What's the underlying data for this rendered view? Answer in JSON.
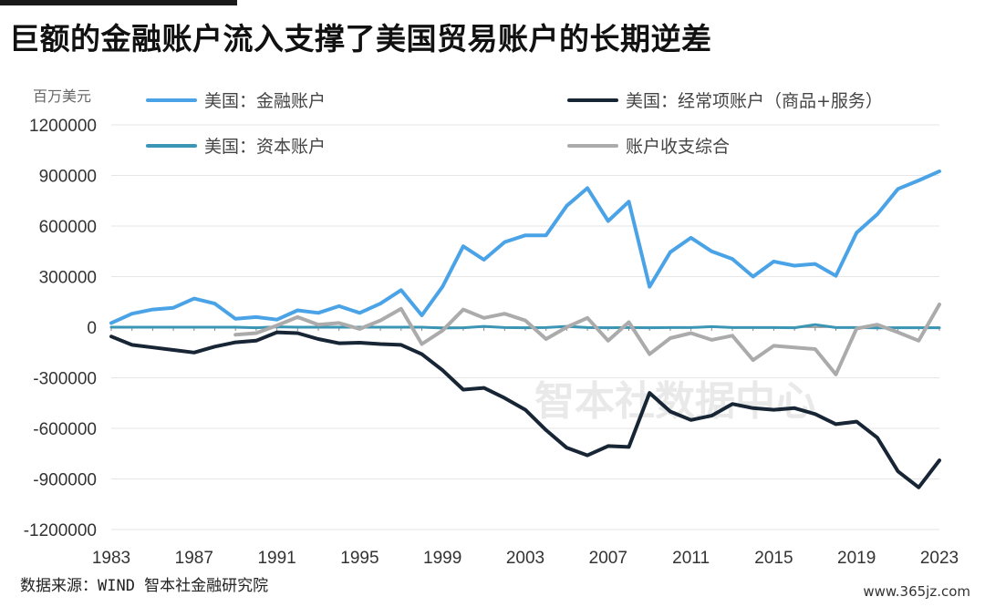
{
  "title": "巨额的金融账户流入支撑了美国贸易账户的长期逆差",
  "source": "数据来源：WIND 智本社金融研究院",
  "watermark": "智本社数据中心",
  "site_mark": "www.365jz.com",
  "chart_data": {
    "type": "line",
    "ylabel": "百万美元",
    "ylim": [
      -1200000,
      1200000
    ],
    "yticks": [
      1200000,
      900000,
      600000,
      300000,
      0,
      -300000,
      -600000,
      -900000,
      -1200000
    ],
    "ytick_labels": [
      "1200000",
      "900000",
      "600000",
      "300000",
      "0",
      "-300000",
      "-600000",
      "-900000",
      "-1200000"
    ],
    "xlim": [
      1983,
      2023
    ],
    "xticks": [
      1983,
      1987,
      1991,
      1995,
      1999,
      2003,
      2007,
      2011,
      2015,
      2019,
      2023
    ],
    "grid": "horizontal",
    "legend_position": "top",
    "series": [
      {
        "name": "美国：金融账户",
        "color": "#4aa3e6",
        "x": [
          1983,
          1984,
          1985,
          1986,
          1987,
          1988,
          1989,
          1990,
          1991,
          1992,
          1993,
          1994,
          1995,
          1996,
          1997,
          1998,
          1999,
          2000,
          2001,
          2002,
          2003,
          2004,
          2005,
          2006,
          2007,
          2008,
          2009,
          2010,
          2011,
          2012,
          2013,
          2014,
          2015,
          2016,
          2017,
          2018,
          2019,
          2020,
          2021,
          2022,
          2023
        ],
        "values": [
          25000,
          80000,
          105000,
          115000,
          170000,
          140000,
          50000,
          60000,
          45000,
          100000,
          85000,
          125000,
          85000,
          140000,
          220000,
          70000,
          240000,
          480000,
          400000,
          505000,
          545000,
          545000,
          720000,
          825000,
          630000,
          745000,
          240000,
          445000,
          530000,
          450000,
          405000,
          300000,
          390000,
          365000,
          375000,
          305000,
          560000,
          670000,
          820000,
          870000,
          925000
        ]
      },
      {
        "name": "美国：经常项账户（商品+服务）",
        "color": "#172535",
        "x": [
          1983,
          1984,
          1985,
          1986,
          1987,
          1988,
          1989,
          1990,
          1991,
          1992,
          1993,
          1994,
          1995,
          1996,
          1997,
          1998,
          1999,
          2000,
          2001,
          2002,
          2003,
          2004,
          2005,
          2006,
          2007,
          2008,
          2009,
          2010,
          2011,
          2012,
          2013,
          2014,
          2015,
          2016,
          2017,
          2018,
          2019,
          2020,
          2021,
          2022,
          2023
        ],
        "values": [
          -55000,
          -105000,
          -120000,
          -135000,
          -150000,
          -115000,
          -90000,
          -80000,
          -30000,
          -35000,
          -70000,
          -95000,
          -92000,
          -100000,
          -105000,
          -160000,
          -255000,
          -370000,
          -360000,
          -420000,
          -490000,
          -610000,
          -715000,
          -760000,
          -705000,
          -710000,
          -390000,
          -500000,
          -550000,
          -525000,
          -455000,
          -480000,
          -490000,
          -480000,
          -515000,
          -575000,
          -560000,
          -655000,
          -855000,
          -950000,
          -790000
        ]
      },
      {
        "name": "美国：资本账户",
        "color": "#3b95b4",
        "x": [
          1983,
          1984,
          1985,
          1986,
          1987,
          1988,
          1989,
          1990,
          1991,
          1992,
          1993,
          1994,
          1995,
          1996,
          1997,
          1998,
          1999,
          2000,
          2001,
          2002,
          2003,
          2004,
          2005,
          2006,
          2007,
          2008,
          2009,
          2010,
          2011,
          2012,
          2013,
          2014,
          2015,
          2016,
          2017,
          2018,
          2019,
          2020,
          2021,
          2022,
          2023
        ],
        "values": [
          0,
          0,
          0,
          0,
          0,
          0,
          0,
          -3000,
          2000,
          0,
          0,
          0,
          0,
          0,
          0,
          0,
          -5000,
          -3000,
          5000,
          -2000,
          -3000,
          -2000,
          5000,
          -2000,
          -3000,
          -2000,
          -3000,
          -2000,
          -2000,
          3000,
          -2000,
          -2000,
          -2000,
          -3000,
          15000,
          -2000,
          -2000,
          -4000,
          -3000,
          -3000,
          -3000
        ]
      },
      {
        "name": "账户收支综合",
        "color": "#ababab",
        "x": [
          1989,
          1990,
          1991,
          1992,
          1993,
          1994,
          1995,
          1996,
          1997,
          1998,
          1999,
          2000,
          2001,
          2002,
          2003,
          2004,
          2005,
          2006,
          2007,
          2008,
          2009,
          2010,
          2011,
          2012,
          2013,
          2014,
          2015,
          2016,
          2017,
          2018,
          2019,
          2020,
          2021,
          2022,
          2023
        ],
        "values": [
          -45000,
          -35000,
          10000,
          60000,
          15000,
          25000,
          -10000,
          40000,
          110000,
          -100000,
          -20000,
          105000,
          55000,
          80000,
          40000,
          -70000,
          0,
          55000,
          -80000,
          30000,
          -160000,
          -65000,
          -35000,
          -75000,
          -50000,
          -195000,
          -110000,
          -120000,
          -130000,
          -280000,
          -8000,
          15000,
          -30000,
          -80000,
          135000
        ]
      }
    ]
  }
}
